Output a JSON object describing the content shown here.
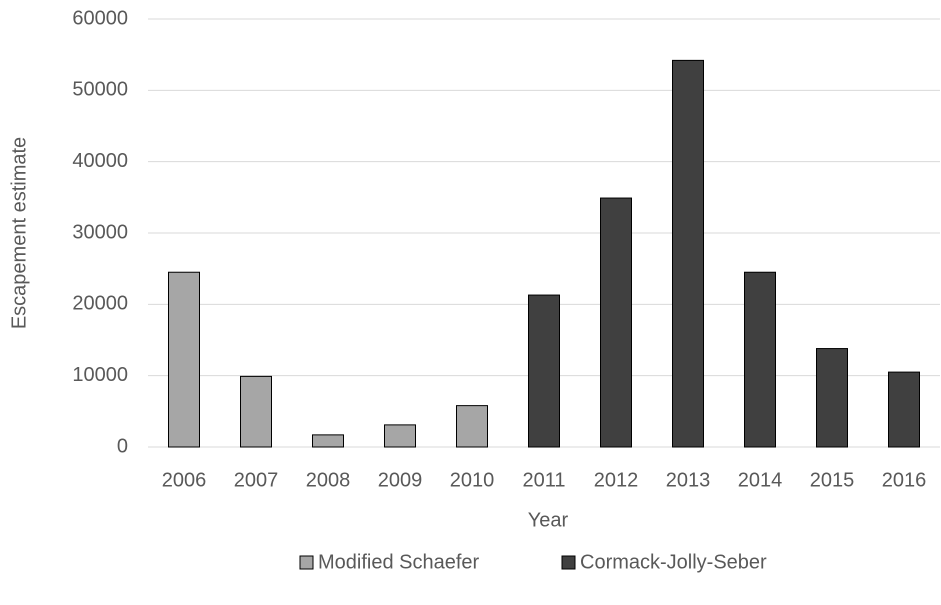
{
  "chart_data": {
    "type": "bar",
    "x_label": "Year",
    "y_label": "Escapement estimate",
    "categories": [
      "2006",
      "2007",
      "2008",
      "2009",
      "2010",
      "2011",
      "2012",
      "2013",
      "2014",
      "2015",
      "2016"
    ],
    "series": [
      {
        "name": "Modified Schaefer",
        "color": "#a6a6a6",
        "values": [
          24500,
          9900,
          1700,
          3100,
          5800,
          null,
          null,
          null,
          null,
          null,
          null
        ]
      },
      {
        "name": "Cormack-Jolly-Seber",
        "color": "#404040",
        "values": [
          null,
          null,
          null,
          null,
          null,
          21300,
          34900,
          54200,
          24500,
          13800,
          10500
        ]
      }
    ],
    "ylim": [
      0,
      60000
    ],
    "yticks": [
      0,
      10000,
      20000,
      30000,
      40000,
      50000,
      60000
    ],
    "grid": true,
    "legend": "bottom"
  }
}
